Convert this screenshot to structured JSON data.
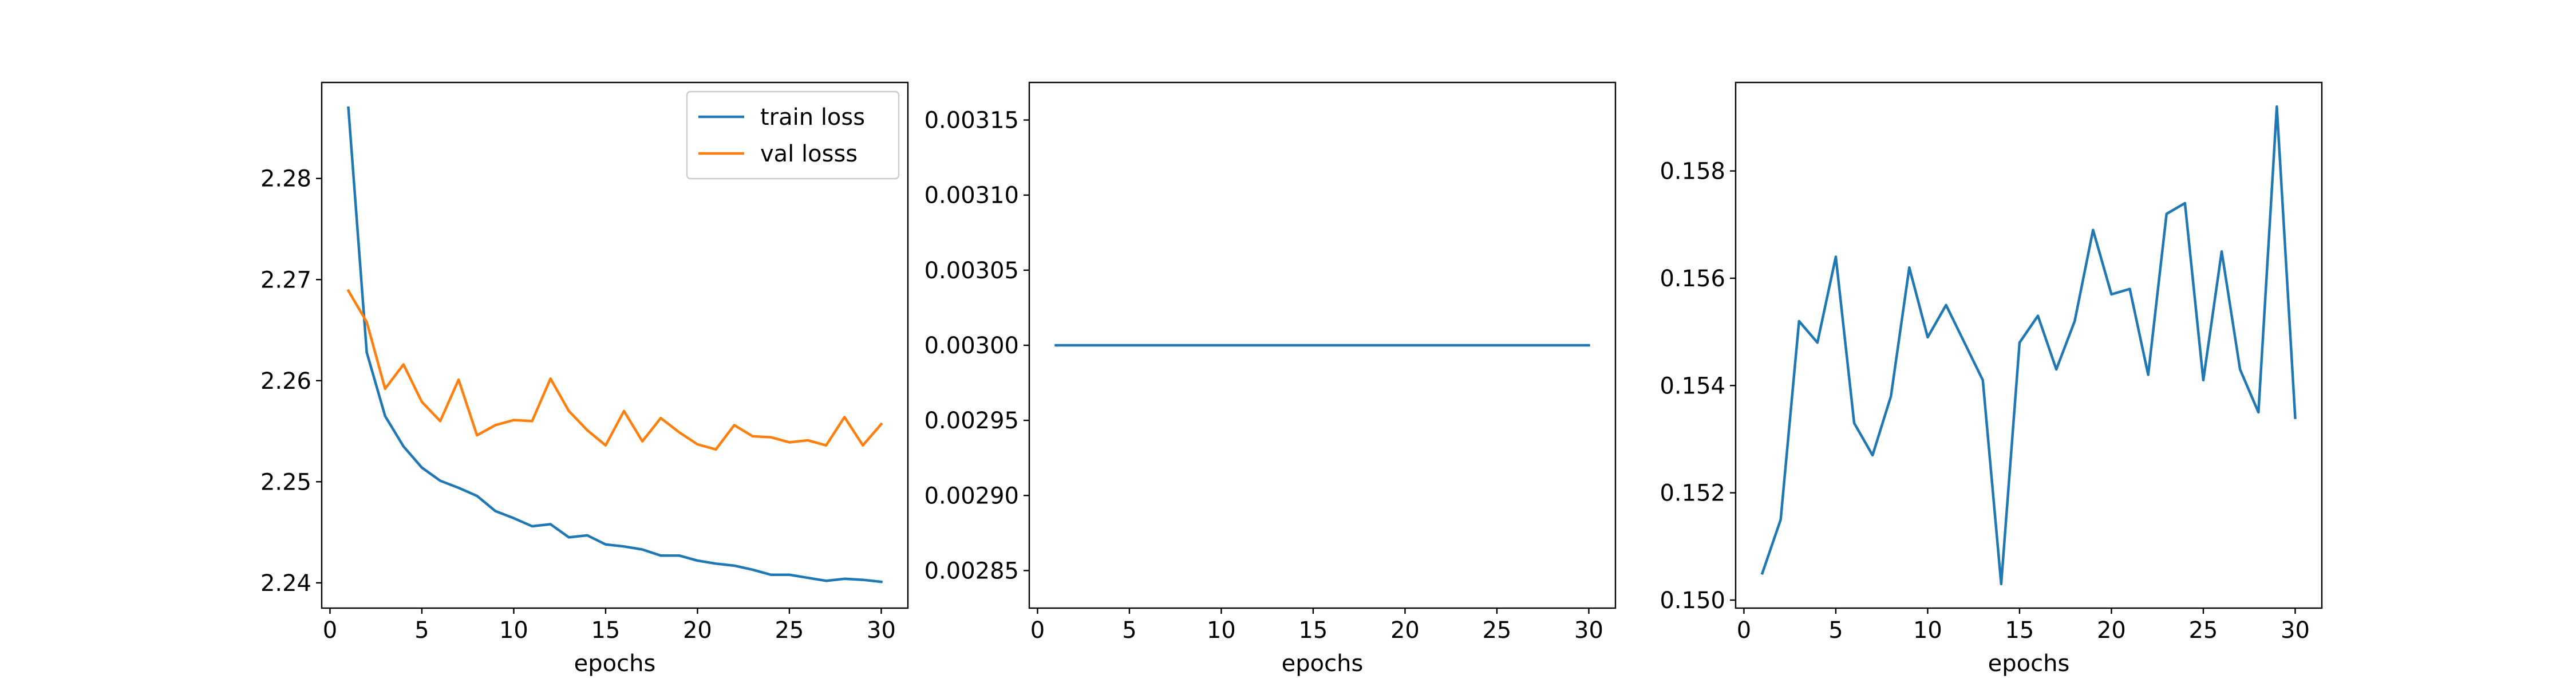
{
  "chart_data": [
    {
      "type": "line",
      "xlabel": "epochs",
      "ylabel": "",
      "xlim": [
        -0.45,
        31.45
      ],
      "ylim": [
        2.2375,
        2.2895
      ],
      "xticks": [
        0,
        5,
        10,
        15,
        20,
        25,
        30
      ],
      "yticks": [
        2.24,
        2.25,
        2.26,
        2.27,
        2.28
      ],
      "ytick_labels": [
        "2.24",
        "2.25",
        "2.26",
        "2.27",
        "2.28"
      ],
      "legend": "upper right",
      "x": [
        1,
        2,
        3,
        4,
        5,
        6,
        7,
        8,
        9,
        10,
        11,
        12,
        13,
        14,
        15,
        16,
        17,
        18,
        19,
        20,
        21,
        22,
        23,
        24,
        25,
        26,
        27,
        28,
        29,
        30
      ],
      "series": [
        {
          "name": "train loss",
          "color": "#1f77b4",
          "values": [
            2.287,
            2.2628,
            2.2565,
            2.2535,
            2.2514,
            2.2501,
            2.2494,
            2.2486,
            2.2471,
            2.2464,
            2.2456,
            2.2458,
            2.2445,
            2.2447,
            2.2438,
            2.2436,
            2.2433,
            2.2427,
            2.2427,
            2.2422,
            2.2419,
            2.2417,
            2.2413,
            2.2408,
            2.2408,
            2.2405,
            2.2402,
            2.2404,
            2.2403,
            2.2401
          ]
        },
        {
          "name": "val losss",
          "color": "#ff7f0e",
          "values": [
            2.2689,
            2.2658,
            2.2592,
            2.2616,
            2.2579,
            2.256,
            2.2601,
            2.2546,
            2.2556,
            2.2561,
            2.256,
            2.2602,
            2.257,
            2.2551,
            2.2536,
            2.257,
            2.254,
            2.2563,
            2.2549,
            2.2537,
            2.2532,
            2.2556,
            2.2545,
            2.2544,
            2.2539,
            2.2541,
            2.2536,
            2.2564,
            2.2536,
            2.2557
          ]
        }
      ]
    },
    {
      "type": "line",
      "xlabel": "epochs",
      "ylabel": "",
      "xlim": [
        -0.45,
        31.45
      ],
      "ylim": [
        0.002825,
        0.003175
      ],
      "xticks": [
        0,
        5,
        10,
        15,
        20,
        25,
        30
      ],
      "yticks": [
        0.00285,
        0.0029,
        0.00295,
        0.003,
        0.00305,
        0.0031,
        0.00315
      ],
      "ytick_labels": [
        "0.00285",
        "0.00290",
        "0.00295",
        "0.00300",
        "0.00305",
        "0.00310",
        "0.00315"
      ],
      "x": [
        1,
        2,
        3,
        4,
        5,
        6,
        7,
        8,
        9,
        10,
        11,
        12,
        13,
        14,
        15,
        16,
        17,
        18,
        19,
        20,
        21,
        22,
        23,
        24,
        25,
        26,
        27,
        28,
        29,
        30
      ],
      "series": [
        {
          "color": "#1f77b4",
          "values": [
            0.003,
            0.003,
            0.003,
            0.003,
            0.003,
            0.003,
            0.003,
            0.003,
            0.003,
            0.003,
            0.003,
            0.003,
            0.003,
            0.003,
            0.003,
            0.003,
            0.003,
            0.003,
            0.003,
            0.003,
            0.003,
            0.003,
            0.003,
            0.003,
            0.003,
            0.003,
            0.003,
            0.003,
            0.003,
            0.003
          ]
        }
      ]
    },
    {
      "type": "line",
      "xlabel": "epochs",
      "ylabel": "",
      "xlim": [
        -0.45,
        31.45
      ],
      "ylim": [
        0.14985,
        0.15965
      ],
      "xticks": [
        0,
        5,
        10,
        15,
        20,
        25,
        30
      ],
      "yticks": [
        0.15,
        0.152,
        0.154,
        0.156,
        0.158
      ],
      "ytick_labels": [
        "0.150",
        "0.152",
        "0.154",
        "0.156",
        "0.158"
      ],
      "x": [
        1,
        2,
        3,
        4,
        5,
        6,
        7,
        8,
        9,
        10,
        11,
        12,
        13,
        14,
        15,
        16,
        17,
        18,
        19,
        20,
        21,
        22,
        23,
        24,
        25,
        26,
        27,
        28,
        29,
        30
      ],
      "series": [
        {
          "color": "#1f77b4",
          "values": [
            0.1505,
            0.1515,
            0.1552,
            0.1548,
            0.1564,
            0.1533,
            0.1527,
            0.1538,
            0.1562,
            0.1549,
            0.1555,
            0.1548,
            0.1541,
            0.1503,
            0.1548,
            0.1553,
            0.1543,
            0.1552,
            0.1569,
            0.1557,
            0.1558,
            0.1542,
            0.1572,
            0.1574,
            0.1541,
            0.1565,
            0.1543,
            0.1535,
            0.1592,
            0.1534
          ]
        }
      ]
    }
  ]
}
